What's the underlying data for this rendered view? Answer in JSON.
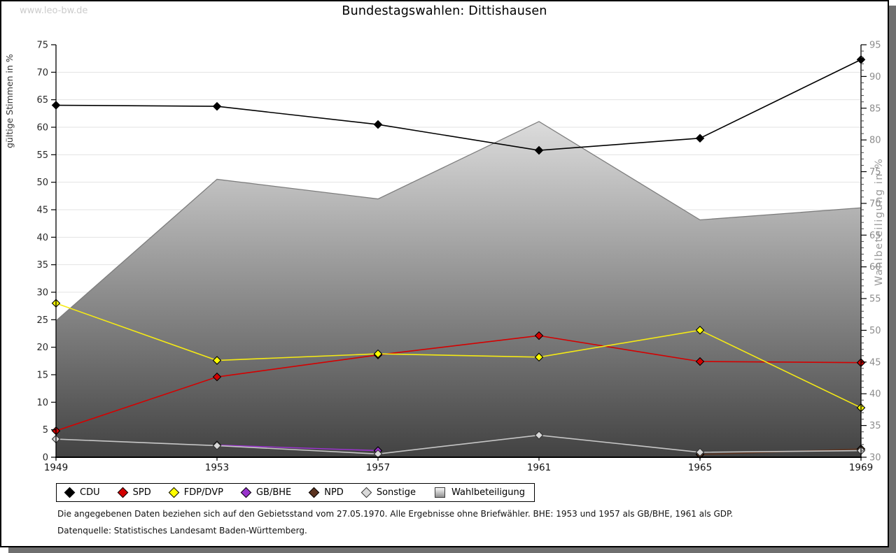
{
  "watermark": "www.leo-bw.de",
  "chart_data": {
    "type": "line",
    "title": "Bundestagswahlen: Dittishausen",
    "categories": [
      "1949",
      "1953",
      "1957",
      "1961",
      "1965",
      "1969"
    ],
    "left_axis": {
      "label": "gültige Stimmen in %",
      "min": 0,
      "max": 75,
      "step": 5
    },
    "right_axis": {
      "label": "Wahlbeteiligung in %",
      "min": 30,
      "max": 95,
      "step": 5,
      "minor_step": 1
    },
    "grid": true,
    "legend_position": "bottom",
    "series": [
      {
        "name": "CDU",
        "color": "#000000",
        "marker_fill": "#000000",
        "axis": "left",
        "values": [
          64.0,
          63.8,
          60.5,
          55.8,
          58.0,
          72.3
        ]
      },
      {
        "name": "SPD",
        "color": "#d40000",
        "marker_fill": "#d40000",
        "axis": "left",
        "values": [
          4.8,
          14.6,
          18.6,
          22.1,
          17.4,
          17.2
        ]
      },
      {
        "name": "FDP/DVP",
        "color": "#f5ea14",
        "marker_fill": "#ffff00",
        "axis": "left",
        "values": [
          28.0,
          17.6,
          18.8,
          18.2,
          23.1,
          9.0
        ]
      },
      {
        "name": "GB/BHE",
        "color": "#9933cc",
        "marker_fill": "#9933cc",
        "axis": "left",
        "values": [
          null,
          2.2,
          1.2,
          null,
          null,
          null
        ]
      },
      {
        "name": "NPD",
        "color": "#5c3420",
        "marker_fill": "#5c3420",
        "axis": "left",
        "values": [
          null,
          null,
          null,
          null,
          0.5,
          1.5
        ]
      },
      {
        "name": "Sonstige",
        "color": "#c6c6c6",
        "marker_fill": "#d9d9d9",
        "axis": "left",
        "values": [
          3.3,
          2.1,
          0.6,
          4.0,
          0.9,
          1.2
        ]
      }
    ],
    "turnout_series": {
      "name": "Wahlbeteiligung",
      "axis": "right",
      "outline": "#7d7d7d",
      "fill_top": "#ffffff",
      "fill_bottom": "#424242",
      "values": [
        51.5,
        73.8,
        70.7,
        82.9,
        67.4,
        69.3
      ]
    }
  },
  "footnotes": {
    "line1": "Die angegebenen Daten beziehen sich auf den Gebietsstand vom 27.05.1970. Alle Ergebnisse ohne Briefwähler. BHE: 1953 und 1957 als GB/BHE, 1961 als GDP.",
    "line2": "Datenquelle: Statistisches Landesamt Baden-Württemberg."
  }
}
